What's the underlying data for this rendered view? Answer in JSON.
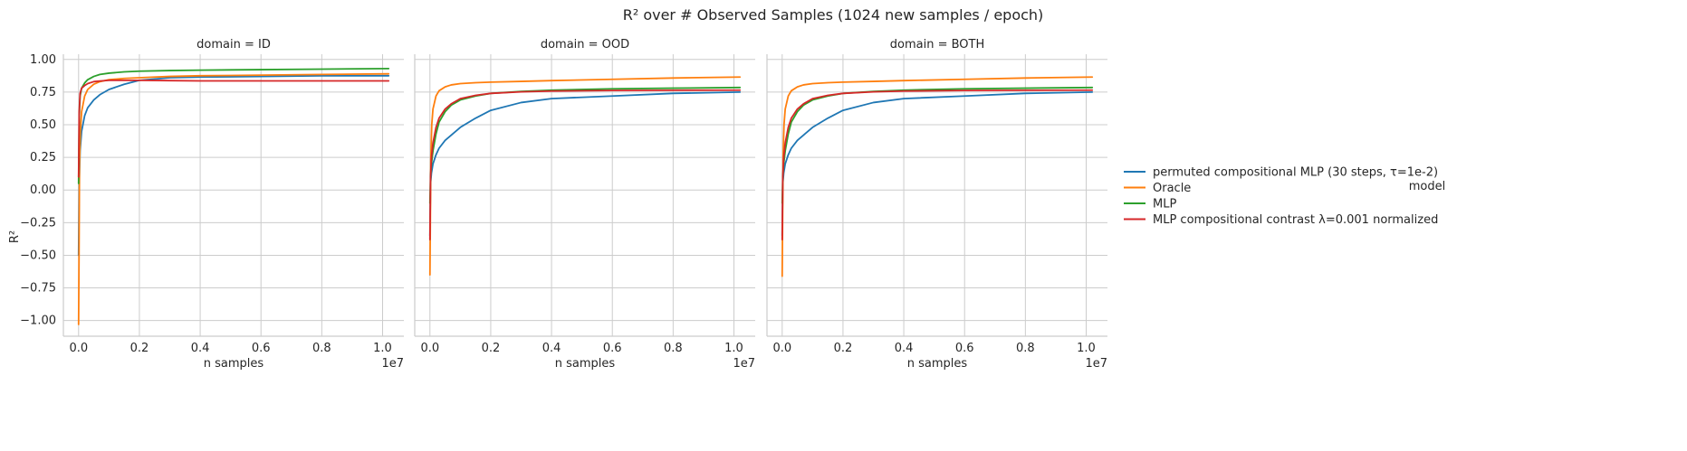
{
  "chart_data": {
    "type": "line",
    "title": "R² over # Observed Samples (1024 new samples / epoch)",
    "xlabel": "n samples",
    "ylabel": "R²",
    "x_offset_label": "1e7",
    "xlim": [
      -500000,
      10700000
    ],
    "ylim": [
      -1.12,
      1.04
    ],
    "xticks": [
      0,
      2000000,
      4000000,
      6000000,
      8000000,
      10000000
    ],
    "xtick_labels": [
      "0.0",
      "0.2",
      "0.4",
      "0.6",
      "0.8",
      "1.0"
    ],
    "yticks": [
      1.0,
      0.75,
      0.5,
      0.25,
      0.0,
      -0.25,
      -0.5,
      -0.75,
      -1.0
    ],
    "ytick_labels": [
      "1.00",
      "0.75",
      "0.50",
      "0.25",
      "0.00",
      "−0.25",
      "−0.50",
      "−0.75",
      "−1.00"
    ],
    "grid": true,
    "legend": {
      "title": "model",
      "placement": "right",
      "entries": [
        {
          "label": "permuted compositional MLP (30 steps, τ=1e-2)",
          "color": "#1f77b4"
        },
        {
          "label": "Oracle",
          "color": "#ff7f0e"
        },
        {
          "label": "MLP",
          "color": "#2ca02c"
        },
        {
          "label": "MLP compositional contrast λ=0.001 normalized",
          "color": "#d62728"
        }
      ]
    },
    "panels": [
      {
        "title": "domain = ID",
        "series": [
          {
            "color": "#1f77b4",
            "x": [
              0,
              20000,
              50000,
              100000,
              200000,
              300000,
              500000,
              700000,
              1000000,
              1500000,
              2000000,
              3000000,
              4000000,
              6000000,
              8000000,
              10200000
            ],
            "y": [
              -0.5,
              0.05,
              0.3,
              0.45,
              0.57,
              0.63,
              0.69,
              0.73,
              0.77,
              0.81,
              0.84,
              0.86,
              0.865,
              0.87,
              0.875,
              0.875
            ]
          },
          {
            "color": "#ff7f0e",
            "x": [
              0,
              15000,
              30000,
              60000,
              100000,
              200000,
              300000,
              500000,
              700000,
              1000000,
              1500000,
              2000000,
              3000000,
              4000000,
              6000000,
              8000000,
              10200000
            ],
            "y": [
              -1.03,
              -0.5,
              0.2,
              0.45,
              0.6,
              0.72,
              0.77,
              0.81,
              0.83,
              0.845,
              0.855,
              0.86,
              0.87,
              0.875,
              0.88,
              0.885,
              0.89
            ]
          },
          {
            "color": "#2ca02c",
            "x": [
              0,
              20000,
              50000,
              100000,
              200000,
              300000,
              500000,
              700000,
              1000000,
              1500000,
              2000000,
              3000000,
              4000000,
              6000000,
              8000000,
              10200000
            ],
            "y": [
              0.05,
              0.55,
              0.72,
              0.78,
              0.82,
              0.845,
              0.87,
              0.885,
              0.895,
              0.905,
              0.91,
              0.915,
              0.918,
              0.922,
              0.926,
              0.93
            ]
          },
          {
            "color": "#d62728",
            "x": [
              0,
              20000,
              50000,
              100000,
              200000,
              300000,
              500000,
              700000,
              1000000,
              1500000,
              2000000,
              3000000,
              4000000,
              6000000,
              8000000,
              10200000
            ],
            "y": [
              0.1,
              0.6,
              0.74,
              0.78,
              0.8,
              0.815,
              0.83,
              0.835,
              0.84,
              0.84,
              0.84,
              0.838,
              0.836,
              0.836,
              0.836,
              0.836
            ]
          }
        ]
      },
      {
        "title": "domain = OOD",
        "series": [
          {
            "color": "#1f77b4",
            "x": [
              0,
              20000,
              50000,
              100000,
              200000,
              300000,
              500000,
              700000,
              1000000,
              1500000,
              2000000,
              3000000,
              4000000,
              6000000,
              8000000,
              10200000
            ],
            "y": [
              -0.35,
              0.05,
              0.13,
              0.2,
              0.27,
              0.32,
              0.38,
              0.42,
              0.48,
              0.55,
              0.61,
              0.67,
              0.7,
              0.72,
              0.74,
              0.75
            ]
          },
          {
            "color": "#ff7f0e",
            "x": [
              0,
              15000,
              30000,
              60000,
              100000,
              200000,
              300000,
              500000,
              700000,
              1000000,
              1500000,
              2000000,
              3000000,
              4000000,
              6000000,
              8000000,
              10200000
            ],
            "y": [
              -0.65,
              -0.2,
              0.25,
              0.5,
              0.62,
              0.72,
              0.76,
              0.79,
              0.805,
              0.815,
              0.822,
              0.826,
              0.832,
              0.838,
              0.848,
              0.858,
              0.865
            ]
          },
          {
            "color": "#2ca02c",
            "x": [
              0,
              20000,
              50000,
              100000,
              200000,
              300000,
              500000,
              700000,
              1000000,
              1500000,
              2000000,
              3000000,
              4000000,
              6000000,
              8000000,
              10200000
            ],
            "y": [
              -0.1,
              0.1,
              0.2,
              0.3,
              0.43,
              0.52,
              0.6,
              0.65,
              0.69,
              0.72,
              0.74,
              0.755,
              0.765,
              0.775,
              0.78,
              0.785
            ]
          },
          {
            "color": "#d62728",
            "x": [
              0,
              20000,
              50000,
              100000,
              200000,
              300000,
              500000,
              700000,
              1000000,
              1500000,
              2000000,
              3000000,
              4000000,
              6000000,
              8000000,
              10200000
            ],
            "y": [
              -0.38,
              0.1,
              0.25,
              0.36,
              0.48,
              0.55,
              0.62,
              0.66,
              0.7,
              0.725,
              0.74,
              0.752,
              0.758,
              0.762,
              0.764,
              0.765
            ]
          }
        ]
      },
      {
        "title": "domain = BOTH",
        "series": [
          {
            "color": "#1f77b4",
            "x": [
              0,
              20000,
              50000,
              100000,
              200000,
              300000,
              500000,
              700000,
              1000000,
              1500000,
              2000000,
              3000000,
              4000000,
              6000000,
              8000000,
              10200000
            ],
            "y": [
              -0.35,
              0.05,
              0.13,
              0.2,
              0.27,
              0.32,
              0.38,
              0.42,
              0.48,
              0.55,
              0.61,
              0.67,
              0.7,
              0.72,
              0.74,
              0.75
            ]
          },
          {
            "color": "#ff7f0e",
            "x": [
              0,
              15000,
              30000,
              60000,
              100000,
              200000,
              300000,
              500000,
              700000,
              1000000,
              1500000,
              2000000,
              3000000,
              4000000,
              6000000,
              8000000,
              10200000
            ],
            "y": [
              -0.66,
              -0.2,
              0.25,
              0.5,
              0.62,
              0.72,
              0.76,
              0.79,
              0.805,
              0.815,
              0.822,
              0.826,
              0.832,
              0.838,
              0.848,
              0.858,
              0.865
            ]
          },
          {
            "color": "#2ca02c",
            "x": [
              0,
              20000,
              50000,
              100000,
              200000,
              300000,
              500000,
              700000,
              1000000,
              1500000,
              2000000,
              3000000,
              4000000,
              6000000,
              8000000,
              10200000
            ],
            "y": [
              -0.1,
              0.1,
              0.2,
              0.3,
              0.43,
              0.52,
              0.6,
              0.65,
              0.69,
              0.72,
              0.74,
              0.755,
              0.765,
              0.775,
              0.78,
              0.785
            ]
          },
          {
            "color": "#d62728",
            "x": [
              0,
              20000,
              50000,
              100000,
              200000,
              300000,
              500000,
              700000,
              1000000,
              1500000,
              2000000,
              3000000,
              4000000,
              6000000,
              8000000,
              10200000
            ],
            "y": [
              -0.38,
              0.1,
              0.25,
              0.36,
              0.48,
              0.55,
              0.62,
              0.66,
              0.7,
              0.725,
              0.74,
              0.752,
              0.758,
              0.762,
              0.764,
              0.765
            ]
          }
        ]
      }
    ]
  }
}
